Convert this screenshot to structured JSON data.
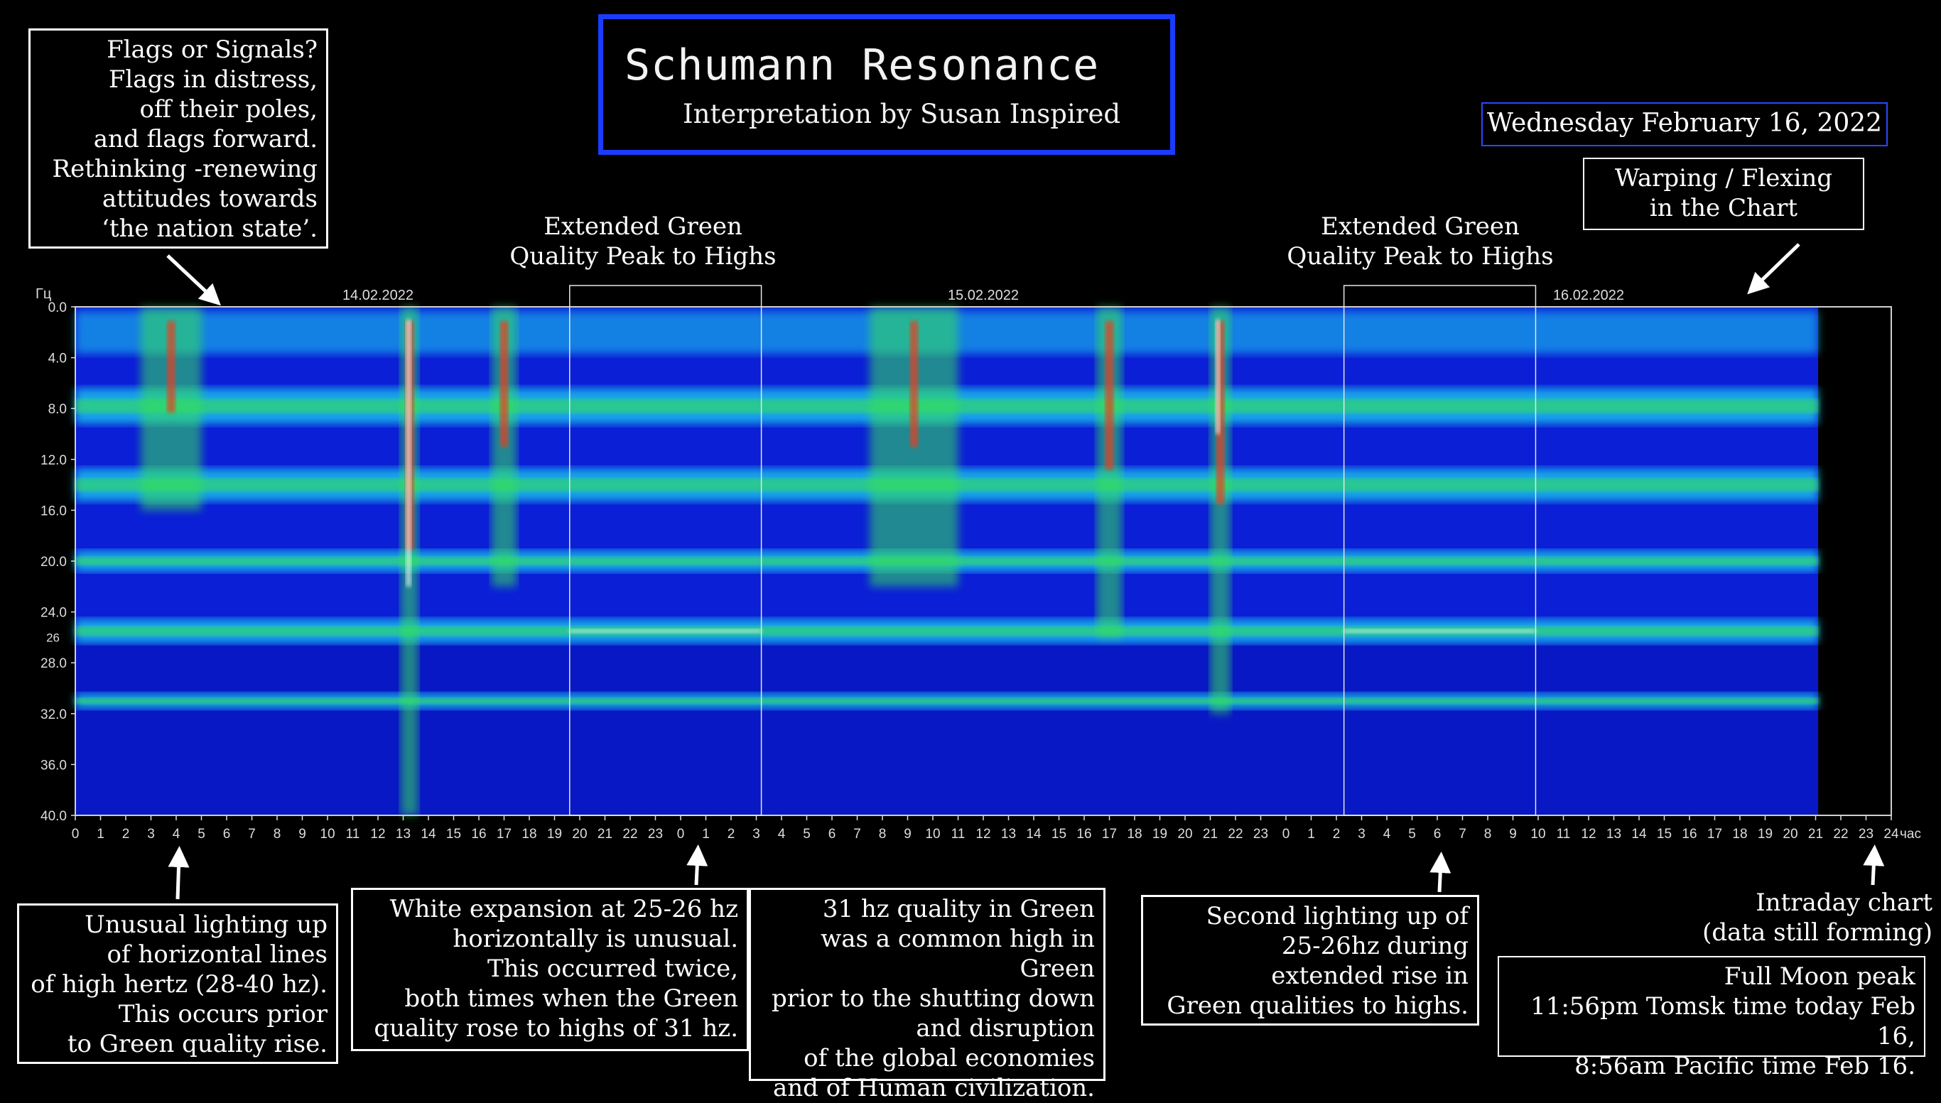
{
  "header": {
    "title": "Schumann Resonance",
    "subtitle": "Interpretation by Susan Inspired",
    "date": "Wednesday February 16, 2022"
  },
  "annotations": {
    "flags": [
      "Flags or Signals?",
      "Flags in distress,",
      "off their poles,",
      "and flags forward.",
      "Rethinking -renewing",
      "attitudes towards",
      "‘the nation state’."
    ],
    "green_peak_1": [
      "Extended Green",
      "Quality Peak to Highs"
    ],
    "green_peak_2": [
      "Extended Green",
      "Quality Peak to Highs"
    ],
    "warping": [
      "Warping / Flexing",
      "in the Chart"
    ],
    "unusual_lighting": [
      "Unusual lighting up",
      "of horizontal lines",
      "of high hertz (28-40 hz).",
      "This occurs prior",
      "to Green quality rise."
    ],
    "white_expansion": [
      "White expansion at 25-26 hz",
      "horizontally is unusual.",
      "This occurred twice,",
      "both times when the Green",
      "quality rose to highs of 31 hz."
    ],
    "hz31": [
      "31 hz quality in Green",
      "was a common high in Green",
      "prior to the shutting down",
      "and disruption",
      "of the global economies",
      "and of Human civilization."
    ],
    "second_lighting": [
      "Second lighting up of",
      "25-26hz during",
      "extended rise in",
      "Green qualities to highs."
    ],
    "intraday": [
      "Intraday chart",
      "(data still forming)"
    ],
    "full_moon": [
      "Full Moon peak",
      "11:56pm  Tomsk time today Feb 16,",
      "8:56am Pacific time Feb 16."
    ]
  },
  "chart_data": {
    "type": "heatmap",
    "y_unit_label": "Гц",
    "x_unit_label": "час",
    "ylim": [
      0,
      40
    ],
    "y_ticks": [
      "0.0",
      "4.0",
      "8.0",
      "12.0",
      "16.0",
      "20.0",
      "24.0",
      "28.0",
      "32.0",
      "36.0",
      "40.0"
    ],
    "y_extra_tick": "26",
    "date_labels": [
      "14.02.2022",
      "15.02.2022",
      "16.02.2022"
    ],
    "x_ticks": [
      "0",
      "1",
      "2",
      "3",
      "4",
      "5",
      "6",
      "7",
      "8",
      "9",
      "10",
      "11",
      "12",
      "13",
      "14",
      "15",
      "16",
      "17",
      "18",
      "19",
      "20",
      "21",
      "22",
      "23",
      "0",
      "1",
      "2",
      "3",
      "4",
      "5",
      "6",
      "7",
      "8",
      "9",
      "10",
      "11",
      "12",
      "13",
      "14",
      "15",
      "16",
      "17",
      "18",
      "19",
      "20",
      "21",
      "22",
      "23",
      "0",
      "1",
      "2",
      "3",
      "4",
      "5",
      "6",
      "7",
      "8",
      "9",
      "10",
      "11",
      "12",
      "13",
      "14",
      "15",
      "16",
      "17",
      "18",
      "19",
      "20",
      "21",
      "22",
      "23",
      "24"
    ],
    "highlight_windows_hours": [
      [
        19.6,
        27.2
      ],
      [
        50.3,
        57.9
      ]
    ],
    "data_end_hour": 69.1,
    "resonance_bands_hz": [
      7.8,
      14,
      20,
      25.5,
      31
    ],
    "colors": {
      "low": "#0a1fd6",
      "mid": "#1fd0f0",
      "high": "#36e05a",
      "peak": "#f03a1a",
      "white": "#ffffff"
    }
  }
}
